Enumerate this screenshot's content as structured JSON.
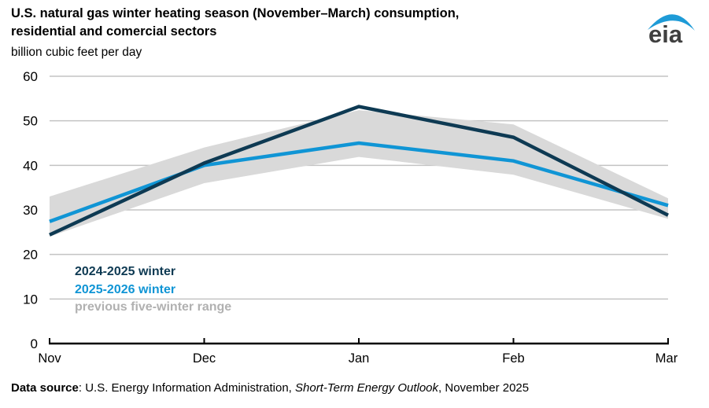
{
  "header": {
    "title_line1": "U.S. natural gas winter heating season (November–March) consumption,",
    "title_line2": "residential and comercial sectors",
    "subtitle": "billion cubic feet per day",
    "logo_text": "eia"
  },
  "chart_data": {
    "type": "line",
    "title": "U.S. natural gas winter heating season (November–March) consumption, residential and comercial sectors",
    "ylabel": "billion cubic feet per day",
    "xlabel": "",
    "categories": [
      "Nov",
      "Dec",
      "Jan",
      "Feb",
      "Mar"
    ],
    "series": [
      {
        "name": "2024-2025 winter",
        "color": "#0e3a53",
        "values": [
          24.4,
          40.5,
          53.2,
          46.3,
          28.8
        ]
      },
      {
        "name": "2025-2026 winter",
        "color": "#1095d5",
        "values": [
          27.4,
          40.0,
          45.0,
          41.0,
          31.0
        ]
      }
    ],
    "band": {
      "name": "previous five-winter range",
      "color": "#d9d9d9",
      "low": [
        24.0,
        36.0,
        41.9,
        37.9,
        28.0
      ],
      "high": [
        33.0,
        44.0,
        52.4,
        49.2,
        32.6
      ]
    },
    "ylim": [
      0,
      60
    ],
    "yticks": [
      0,
      10,
      20,
      30,
      40,
      50,
      60
    ],
    "grid": true,
    "gridline_color": "#c3c3c3",
    "axis_color": "#000000",
    "legend_position": "lower-left"
  },
  "legend": {
    "items": [
      {
        "label": "2024-2025 winter",
        "color": "#0e3a53"
      },
      {
        "label": "2025-2026 winter",
        "color": "#1095d5"
      },
      {
        "label": "previous five-winter range",
        "color": "#b1b1b1"
      }
    ]
  },
  "footer": {
    "label_bold": "Data source",
    "text_after_label": ": U.S. Energy Information Administration, ",
    "italic": "Short-Term Energy Outlook",
    "suffix": ", November 2025"
  },
  "logo": {
    "text_color": "#404040",
    "swoosh_color": "#1e9bd7"
  }
}
